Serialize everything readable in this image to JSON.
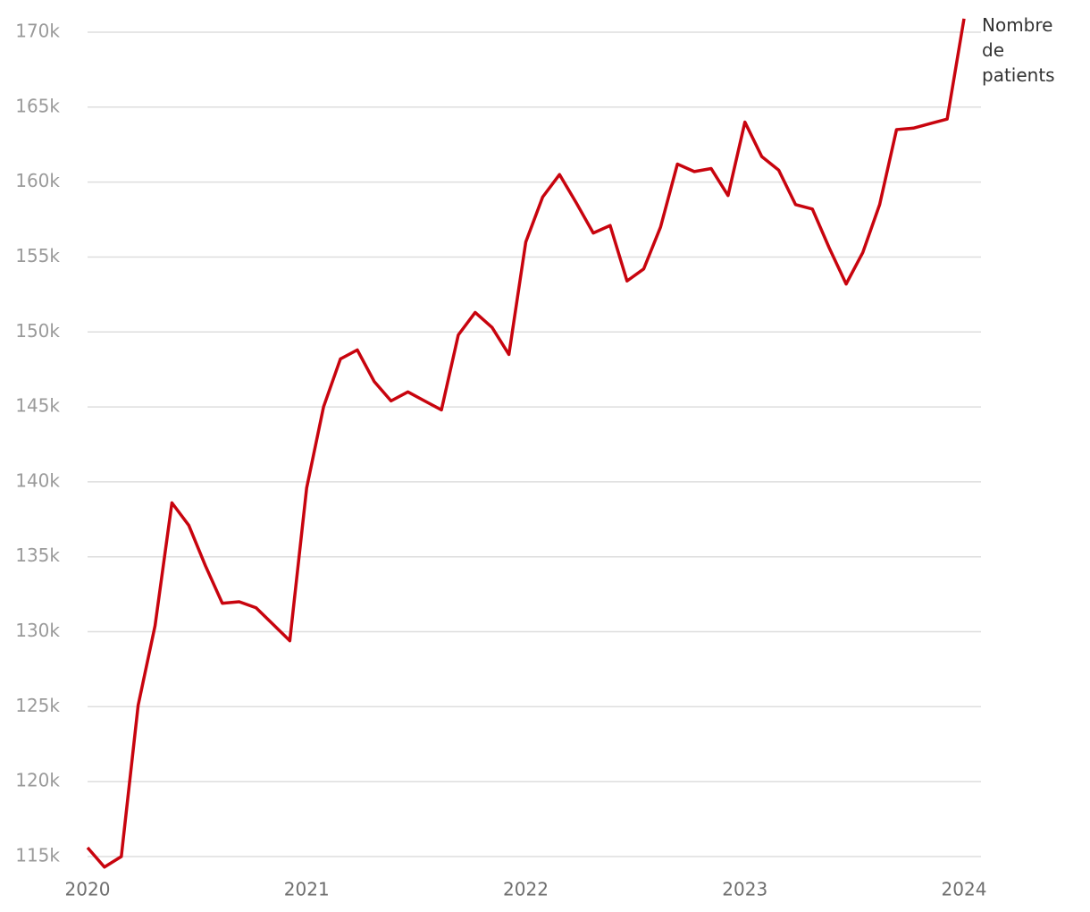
{
  "chart_data": {
    "type": "line",
    "x": [
      2020,
      2020.077,
      2020.154,
      2020.231,
      2020.308,
      2020.385,
      2020.462,
      2020.538,
      2020.615,
      2020.692,
      2020.769,
      2020.846,
      2020.923,
      2021,
      2021.077,
      2021.154,
      2021.231,
      2021.308,
      2021.385,
      2021.462,
      2021.538,
      2021.615,
      2021.692,
      2021.769,
      2021.846,
      2021.923,
      2022,
      2022.077,
      2022.154,
      2022.231,
      2022.308,
      2022.385,
      2022.462,
      2022.538,
      2022.615,
      2022.692,
      2022.769,
      2022.846,
      2022.923,
      2023,
      2023.077,
      2023.154,
      2023.231,
      2023.308,
      2023.385,
      2023.462,
      2023.538,
      2023.615,
      2023.692,
      2023.769,
      2023.846,
      2023.923,
      2024
    ],
    "series": [
      {
        "name": "Nombre de patients",
        "color": "#c8040e",
        "values": [
          115600,
          114300,
          115000,
          125100,
          130400,
          138600,
          137100,
          134400,
          131900,
          132000,
          131600,
          130500,
          129400,
          139600,
          145000,
          148200,
          148800,
          146700,
          145400,
          146000,
          145400,
          144800,
          149800,
          151300,
          150300,
          148500,
          156000,
          159000,
          160500,
          158600,
          156600,
          157100,
          153400,
          154200,
          157000,
          161200,
          160700,
          160900,
          159100,
          164000,
          161700,
          160800,
          158500,
          158200,
          155600,
          153200,
          155300,
          158500,
          163500,
          163600,
          163900,
          164200,
          170900
        ]
      }
    ],
    "xlim": [
      2020,
      2024
    ],
    "xticks": [
      2020,
      2021,
      2022,
      2023,
      2024
    ],
    "ylim": [
      114000,
      171000
    ],
    "yticks": [
      {
        "value": 115000,
        "label": "115k"
      },
      {
        "value": 120000,
        "label": "120k"
      },
      {
        "value": 125000,
        "label": "125k"
      },
      {
        "value": 130000,
        "label": "130k"
      },
      {
        "value": 135000,
        "label": "135k"
      },
      {
        "value": 140000,
        "label": "140k"
      },
      {
        "value": 145000,
        "label": "145k"
      },
      {
        "value": 150000,
        "label": "150k"
      },
      {
        "value": 155000,
        "label": "155k"
      },
      {
        "value": 160000,
        "label": "160k"
      },
      {
        "value": 165000,
        "label": "165k"
      },
      {
        "value": 170000,
        "label": "170k"
      }
    ],
    "grid": true
  }
}
